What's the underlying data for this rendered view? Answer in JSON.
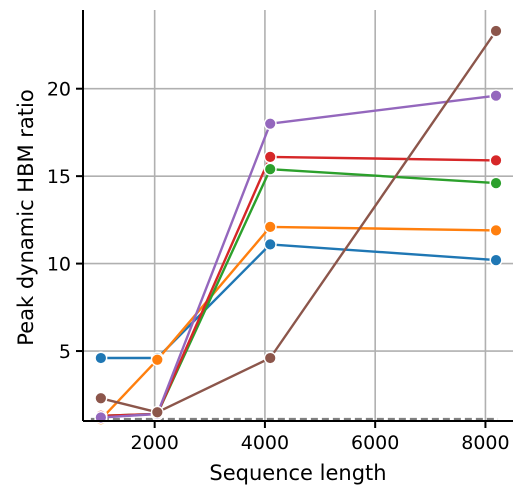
{
  "chart_data": {
    "type": "line",
    "xlabel": "Sequence length",
    "ylabel": "Peak dynamic HBM ratio",
    "xlim": [
      700,
      8500
    ],
    "ylim": [
      1.0,
      24.5
    ],
    "xticks": [
      2000,
      4000,
      6000,
      8000
    ],
    "yticks": [
      5,
      10,
      15,
      20
    ],
    "xtick_labels": [
      "2000",
      "4000",
      "6000",
      "8000"
    ],
    "ytick_labels": [
      "5",
      "10",
      "15",
      "20"
    ],
    "grid": true,
    "legend": "none",
    "reference_line": {
      "y": 1.0,
      "style": "dashed",
      "color": "#7f7f7f"
    },
    "series": [
      {
        "color": "#1f77b4",
        "x": [
          1024,
          2048,
          4096,
          8192
        ],
        "y": [
          4.6,
          4.6,
          11.1,
          10.2
        ]
      },
      {
        "color": "#ff7f0e",
        "x": [
          1024,
          2048,
          4096,
          8192
        ],
        "y": [
          1.1,
          4.5,
          12.1,
          11.9
        ]
      },
      {
        "color": "#2ca02c",
        "x": [
          1024,
          2048,
          4096,
          8192
        ],
        "y": [
          1.3,
          1.4,
          15.4,
          14.6
        ]
      },
      {
        "color": "#d62728",
        "x": [
          1024,
          2048,
          4096,
          8192
        ],
        "y": [
          1.3,
          1.4,
          16.1,
          15.9
        ]
      },
      {
        "color": "#9467bd",
        "x": [
          1024,
          2048,
          4096,
          8192
        ],
        "y": [
          1.2,
          1.4,
          18.0,
          19.6
        ]
      },
      {
        "color": "#8c564b",
        "x": [
          1024,
          2048,
          4096,
          8192
        ],
        "y": [
          2.3,
          1.5,
          4.6,
          23.3
        ]
      }
    ]
  }
}
